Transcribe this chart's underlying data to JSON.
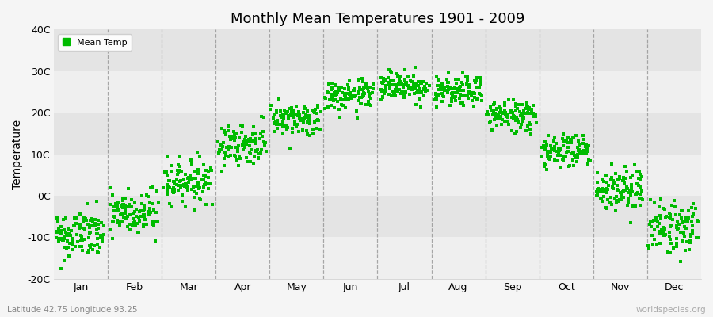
{
  "title": "Monthly Mean Temperatures 1901 - 2009",
  "ylabel": "Temperature",
  "ylim": [
    -20,
    40
  ],
  "yticks": [
    -20,
    -10,
    0,
    10,
    20,
    30,
    40
  ],
  "ytick_labels": [
    "-20C",
    "-10C",
    "0C",
    "10C",
    "20C",
    "30C",
    "40C"
  ],
  "months": [
    "Jan",
    "Feb",
    "Mar",
    "Apr",
    "May",
    "Jun",
    "Jul",
    "Aug",
    "Sep",
    "Oct",
    "Nov",
    "Dec"
  ],
  "dot_color": "#00bb00",
  "legend_label": "Mean Temp",
  "footer_left": "Latitude 42.75 Longitude 93.25",
  "footer_right": "worldspecies.org",
  "mean_temps": [
    -9.5,
    -4.5,
    3.5,
    12.5,
    18.5,
    24.0,
    26.5,
    25.0,
    19.5,
    11.0,
    1.5,
    -7.5
  ],
  "std_temps": [
    3.0,
    3.0,
    2.5,
    2.5,
    2.0,
    1.8,
    1.8,
    1.8,
    2.0,
    2.2,
    2.8,
    3.2
  ],
  "n_years": 109,
  "seed": 42,
  "fig_bg": "#f5f5f5",
  "plot_bg": "#f5f5f5",
  "band_colors": [
    "#efefef",
    "#e4e4e4"
  ],
  "vline_color": "#888888",
  "dot_size": 5
}
